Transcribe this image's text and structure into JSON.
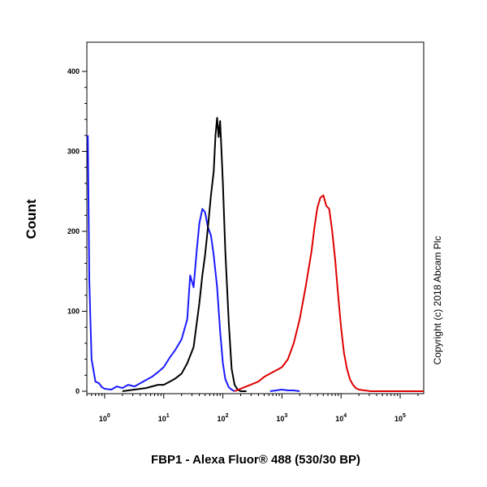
{
  "chart_data": {
    "type": "line",
    "title": "",
    "xlabel": "FBP1 - Alexa Fluor® 488 (530/30 BP)",
    "ylabel": "Count",
    "x_scale": "log",
    "xlim": [
      0.5,
      250000
    ],
    "ylim": [
      0,
      400
    ],
    "grid": false,
    "legend": "none",
    "x_ticks": [
      {
        "value": 1,
        "base": "10",
        "exp": "0"
      },
      {
        "value": 10,
        "base": "10",
        "exp": "1"
      },
      {
        "value": 100,
        "base": "10",
        "exp": "2"
      },
      {
        "value": 1000,
        "base": "10",
        "exp": "3"
      },
      {
        "value": 10000,
        "base": "10",
        "exp": "4"
      },
      {
        "value": 100000,
        "base": "10",
        "exp": "5"
      }
    ],
    "y_ticks": [
      {
        "value": 0,
        "label": "0"
      },
      {
        "value": 100,
        "label": "100"
      },
      {
        "value": 200,
        "label": "200"
      },
      {
        "value": 300,
        "label": "300"
      },
      {
        "value": 400,
        "label": "400"
      }
    ],
    "annotation": "Copyright (c) 2018 Abcam Plc",
    "series": [
      {
        "color": "#1a1aff",
        "x": [
          0.52,
          0.55,
          0.6,
          0.7,
          0.8,
          0.9,
          1.0,
          1.3,
          1.6,
          2.0,
          2.5,
          3.2,
          4.0,
          5.0,
          6.3,
          8.0,
          10,
          12.6,
          15.8,
          20,
          25,
          28,
          32,
          36,
          40,
          45,
          50,
          56,
          63,
          70,
          80,
          90,
          100,
          110,
          126,
          141,
          158
        ],
        "y": [
          320,
          140,
          40,
          12,
          10,
          5,
          3,
          2,
          6,
          4,
          8,
          6,
          10,
          14,
          18,
          24,
          30,
          42,
          52,
          65,
          90,
          145,
          130,
          175,
          210,
          228,
          224,
          205,
          195,
          170,
          130,
          75,
          35,
          15,
          5,
          2,
          0
        ]
      },
      {
        "color": "#000000",
        "x": [
          2.0,
          3.2,
          5.0,
          8.0,
          10,
          12.6,
          15.8,
          20,
          25,
          32,
          40,
          45,
          50,
          56,
          63,
          70,
          75,
          80,
          85,
          90,
          95,
          100,
          110,
          126,
          141,
          158,
          178,
          200,
          251
        ],
        "y": [
          0,
          2,
          4,
          8,
          8,
          12,
          16,
          22,
          35,
          55,
          110,
          145,
          170,
          205,
          245,
          275,
          320,
          342,
          318,
          338,
          300,
          260,
          175,
          85,
          28,
          8,
          2,
          0,
          0
        ]
      },
      {
        "color": "#e00000",
        "x": [
          158,
          251,
          398,
          501,
          631,
          794,
          1000,
          1259,
          1585,
          1995,
          2512,
          3162,
          3548,
          3981,
          4467,
          5012,
          5623,
          6310,
          7079,
          7943,
          8913,
          10000,
          11220,
          12589,
          14125,
          15849,
          17783,
          19953,
          25119,
          31623,
          50119,
          100000,
          250000
        ],
        "y": [
          0,
          6,
          12,
          18,
          22,
          26,
          30,
          40,
          60,
          90,
          130,
          175,
          205,
          230,
          242,
          245,
          232,
          228,
          200,
          165,
          120,
          80,
          48,
          28,
          15,
          8,
          4,
          2,
          1,
          0,
          0,
          0,
          0
        ]
      },
      {
        "color": "#1a1aff",
        "x": [
          631,
          794,
          1000,
          1259,
          1585,
          1995
        ],
        "y": [
          0,
          1,
          2,
          1,
          1,
          0
        ]
      }
    ]
  }
}
